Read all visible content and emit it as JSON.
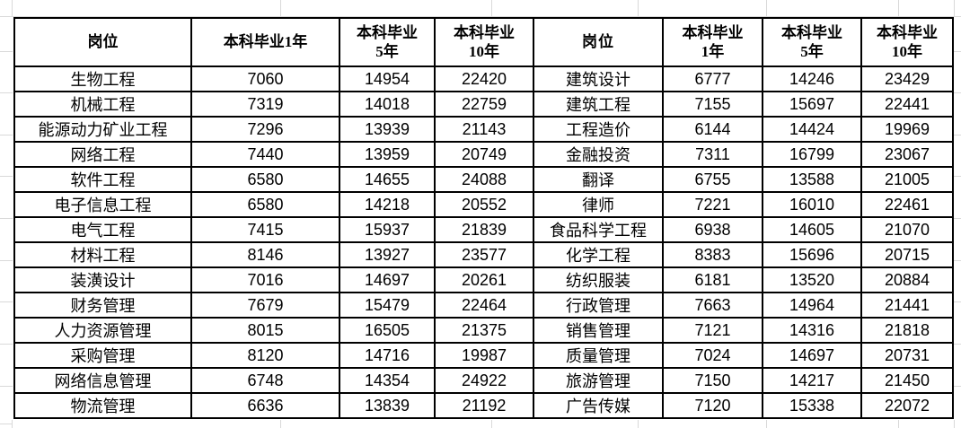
{
  "page": {
    "background_color": "#ffffff",
    "table_border_color": "#000000",
    "gridline_color": "#d9d9d9",
    "text_color": "#000000"
  },
  "chart_data": {
    "type": "table",
    "columns": [
      "岗位",
      "本科毕业1年",
      "本科毕业5年",
      "本科毕业10年"
    ],
    "header_display": {
      "left": [
        "岗位",
        "本科毕业1年",
        "本科毕业\n5年",
        "本科毕业\n10年"
      ],
      "right": [
        "岗位",
        "本科毕业\n1年",
        "本科毕业\n5年",
        "本科毕业\n10年"
      ]
    },
    "left_rows": [
      [
        "生物工程",
        7060,
        14954,
        22420
      ],
      [
        "机械工程",
        7319,
        14018,
        22759
      ],
      [
        "能源动力矿业工程",
        7296,
        13939,
        21143
      ],
      [
        "网络工程",
        7440,
        13959,
        20749
      ],
      [
        "软件工程",
        6580,
        14655,
        24088
      ],
      [
        "电子信息工程",
        6580,
        14218,
        20552
      ],
      [
        "电气工程",
        7415,
        15937,
        21839
      ],
      [
        "材料工程",
        8146,
        13927,
        23577
      ],
      [
        "装潢设计",
        7016,
        14697,
        20261
      ],
      [
        "财务管理",
        7679,
        15479,
        22464
      ],
      [
        "人力资源管理",
        8015,
        16505,
        21375
      ],
      [
        "采购管理",
        8120,
        14716,
        19987
      ],
      [
        "网络信息管理",
        6748,
        14354,
        24922
      ],
      [
        "物流管理",
        6636,
        13839,
        21192
      ]
    ],
    "right_rows": [
      [
        "建筑设计",
        6777,
        14246,
        23429
      ],
      [
        "建筑工程",
        7155,
        15697,
        22441
      ],
      [
        "工程造价",
        6144,
        14424,
        19969
      ],
      [
        "金融投资",
        7311,
        16799,
        23067
      ],
      [
        "翻译",
        6755,
        13588,
        21005
      ],
      [
        "律师",
        7221,
        16010,
        22461
      ],
      [
        "食品科学工程",
        6938,
        14605,
        21070
      ],
      [
        "化学工程",
        8383,
        15696,
        20715
      ],
      [
        "纺织服装",
        6181,
        13520,
        20884
      ],
      [
        "行政管理",
        7663,
        14964,
        21441
      ],
      [
        "销售管理",
        7121,
        14316,
        21818
      ],
      [
        "质量管理",
        7024,
        14697,
        20731
      ],
      [
        "旅游管理",
        7150,
        14217,
        21450
      ],
      [
        "广告传媒",
        7120,
        15338,
        22072
      ]
    ]
  }
}
